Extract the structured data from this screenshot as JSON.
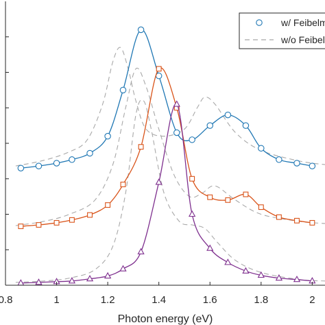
{
  "chart_data": {
    "type": "line",
    "title": "",
    "xlabel": "Photon energy (eV)",
    "ylabel": "",
    "xlim": [
      0.8,
      2.05
    ],
    "ylim": [
      0,
      4.0
    ],
    "x_ticks": [
      0.8,
      1.0,
      1.2,
      1.4,
      1.6,
      1.8,
      2.0
    ],
    "x_tick_labels": [
      "0.8",
      "1",
      "1.2",
      "1.4",
      "1.6",
      "1.8",
      "2"
    ],
    "y_ticks": [
      0.5,
      1.0,
      1.5,
      2.0,
      2.5,
      3.0,
      3.5
    ],
    "grid": false,
    "legend": {
      "position": "top-right",
      "entries": [
        "w/  Feibelman",
        "w/o Feibelman"
      ]
    },
    "series": [
      {
        "name": "w/  Feibelman",
        "group": "top",
        "color": "#1f77b4",
        "marker": "circle",
        "x": [
          0.86,
          0.93,
          1.0,
          1.06,
          1.13,
          1.2,
          1.26,
          1.33,
          1.4,
          1.47,
          1.53,
          1.6,
          1.67,
          1.74,
          1.8,
          1.87,
          1.94,
          2.0
        ],
        "y": [
          1.65,
          1.68,
          1.72,
          1.77,
          1.86,
          2.1,
          2.75,
          3.6,
          2.95,
          2.15,
          2.05,
          2.25,
          2.4,
          2.25,
          1.93,
          1.77,
          1.72,
          1.68
        ]
      },
      {
        "name": "w/o Feibelman",
        "group": "top",
        "color": "#a8a8a8",
        "marker": "none",
        "dashed": true,
        "x": [
          0.84,
          0.95,
          1.05,
          1.12,
          1.18,
          1.22,
          1.25,
          1.28,
          1.31,
          1.35,
          1.42,
          1.5,
          1.55,
          1.58,
          1.62,
          1.7,
          1.8,
          1.95,
          2.05
        ],
        "y": [
          1.68,
          1.76,
          1.88,
          2.05,
          2.55,
          3.15,
          3.35,
          3.05,
          2.6,
          2.2,
          2.1,
          2.2,
          2.5,
          2.65,
          2.55,
          2.15,
          1.9,
          1.75,
          1.7
        ]
      },
      {
        "name": "w/  Feibelman",
        "group": "middle",
        "color": "#d95319",
        "marker": "square",
        "x": [
          0.86,
          0.93,
          1.0,
          1.06,
          1.13,
          1.2,
          1.26,
          1.33,
          1.4,
          1.47,
          1.53,
          1.6,
          1.67,
          1.74,
          1.8,
          1.87,
          1.94,
          2.0
        ],
        "y": [
          0.83,
          0.85,
          0.88,
          0.92,
          0.99,
          1.13,
          1.42,
          1.95,
          3.05,
          2.5,
          1.5,
          1.24,
          1.2,
          1.28,
          1.1,
          0.96,
          0.91,
          0.88
        ]
      },
      {
        "name": "w/o Feibelman",
        "group": "middle",
        "color": "#a8a8a8",
        "marker": "none",
        "dashed": true,
        "x": [
          0.84,
          0.95,
          1.05,
          1.15,
          1.22,
          1.27,
          1.31,
          1.35,
          1.4,
          1.46,
          1.52,
          1.57,
          1.62,
          1.7,
          1.8,
          1.95,
          2.05
        ],
        "y": [
          0.84,
          0.9,
          1.0,
          1.2,
          1.7,
          2.5,
          3.05,
          2.8,
          2.2,
          1.55,
          1.25,
          1.3,
          1.4,
          1.2,
          1.0,
          0.9,
          0.87
        ]
      },
      {
        "name": "w/  Feibelman",
        "group": "bottom",
        "color": "#7e2f8e",
        "marker": "triangle",
        "x": [
          0.86,
          0.93,
          1.0,
          1.06,
          1.13,
          1.2,
          1.26,
          1.33,
          1.4,
          1.47,
          1.53,
          1.6,
          1.67,
          1.74,
          1.8,
          1.87,
          1.94,
          2.0
        ],
        "y": [
          0.03,
          0.04,
          0.05,
          0.06,
          0.09,
          0.13,
          0.23,
          0.47,
          1.45,
          2.55,
          1.0,
          0.52,
          0.32,
          0.2,
          0.14,
          0.1,
          0.08,
          0.06
        ]
      },
      {
        "name": "w/o Feibelman",
        "group": "bottom",
        "color": "#a8a8a8",
        "marker": "none",
        "dashed": true,
        "x": [
          0.84,
          0.95,
          1.05,
          1.15,
          1.22,
          1.27,
          1.31,
          1.34,
          1.37,
          1.42,
          1.48,
          1.53,
          1.58,
          1.63,
          1.7,
          1.8,
          1.95,
          2.05
        ],
        "y": [
          0.04,
          0.06,
          0.1,
          0.22,
          0.55,
          1.3,
          2.4,
          2.6,
          2.2,
          1.3,
          0.9,
          0.85,
          0.8,
          0.6,
          0.35,
          0.18,
          0.08,
          0.06
        ]
      }
    ]
  }
}
